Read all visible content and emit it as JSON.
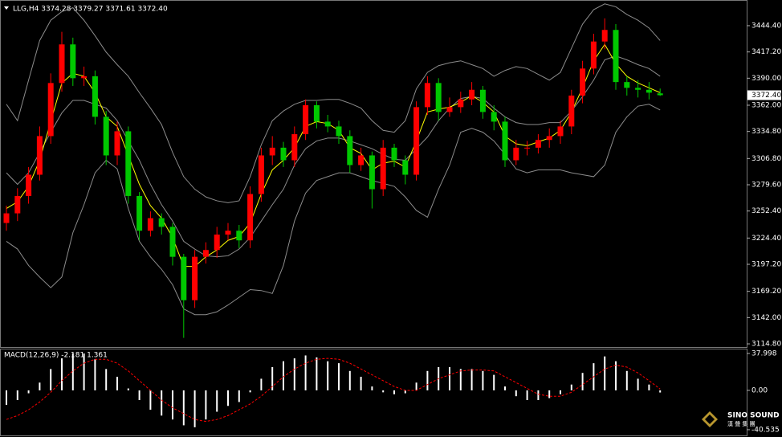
{
  "chart_data": [
    {
      "type": "candlestick",
      "title": "LLG,H4 3374.28 3379.27 3371.61 3372.40",
      "open": [
        3240,
        3250,
        3268,
        3290,
        3330,
        3385,
        3425,
        3390,
        3392,
        3350,
        3310,
        3335,
        3268,
        3232,
        3245,
        3236,
        3205,
        3160,
        3205,
        3212,
        3228,
        3232,
        3222,
        3270,
        3310,
        3318,
        3305,
        3332,
        3362,
        3345,
        3340,
        3330,
        3300,
        3310,
        3275,
        3318,
        3305,
        3290,
        3360,
        3385,
        3355,
        3360,
        3368,
        3378,
        3355,
        3345,
        3305,
        3318,
        3318,
        3326,
        3330,
        3340,
        3372,
        3400,
        3428,
        3440,
        3386,
        3380,
        3378,
        3374.28
      ],
      "high": [
        3258,
        3276,
        3298,
        3340,
        3395,
        3438,
        3432,
        3402,
        3398,
        3356,
        3345,
        3340,
        3272,
        3252,
        3250,
        3240,
        3208,
        3212,
        3220,
        3236,
        3240,
        3238,
        3278,
        3318,
        3330,
        3324,
        3340,
        3368,
        3366,
        3352,
        3346,
        3336,
        3318,
        3314,
        3326,
        3322,
        3310,
        3366,
        3392,
        3390,
        3370,
        3376,
        3386,
        3382,
        3362,
        3350,
        3326,
        3325,
        3332,
        3338,
        3346,
        3378,
        3408,
        3436,
        3452,
        3446,
        3392,
        3388,
        3386,
        3379.27
      ],
      "low": [
        3232,
        3242,
        3260,
        3284,
        3322,
        3376,
        3382,
        3382,
        3342,
        3300,
        3300,
        3260,
        3222,
        3226,
        3228,
        3196,
        3121,
        3152,
        3198,
        3204,
        3222,
        3214,
        3214,
        3262,
        3300,
        3298,
        3298,
        3326,
        3338,
        3334,
        3322,
        3292,
        3294,
        3255,
        3268,
        3298,
        3280,
        3284,
        3352,
        3346,
        3350,
        3354,
        3362,
        3348,
        3336,
        3298,
        3300,
        3310,
        3312,
        3318,
        3322,
        3332,
        3364,
        3394,
        3420,
        3378,
        3372,
        3370,
        3368,
        3371.61
      ],
      "close": [
        3250,
        3268,
        3290,
        3330,
        3385,
        3425,
        3390,
        3392,
        3350,
        3310,
        3335,
        3268,
        3232,
        3245,
        3236,
        3205,
        3160,
        3205,
        3212,
        3228,
        3232,
        3222,
        3270,
        3310,
        3318,
        3305,
        3332,
        3362,
        3345,
        3340,
        3330,
        3300,
        3310,
        3275,
        3318,
        3305,
        3290,
        3360,
        3385,
        3355,
        3360,
        3368,
        3378,
        3355,
        3345,
        3305,
        3318,
        3318,
        3326,
        3330,
        3340,
        3372,
        3400,
        3428,
        3440,
        3386,
        3380,
        3378,
        3375,
        3372.4
      ],
      "up_color": "#ff0000",
      "down_color": "#00c800",
      "bands": [
        {
          "color": "#8c8c8c",
          "values": [
            3363,
            3346,
            3388,
            3429,
            3450,
            3459,
            3463,
            3450,
            3434,
            3417,
            3404,
            3392,
            3375,
            3359,
            3342,
            3313,
            3288,
            3275,
            3267,
            3263,
            3261,
            3263,
            3288,
            3321,
            3346,
            3356,
            3363,
            3367,
            3367,
            3368,
            3368,
            3364,
            3359,
            3346,
            3336,
            3334,
            3346,
            3379,
            3396,
            3403,
            3406,
            3408,
            3404,
            3400,
            3392,
            3398,
            3402,
            3400,
            3394,
            3388,
            3396,
            3421,
            3446,
            3461,
            3467,
            3464,
            3456,
            3450,
            3442,
            3429
          ]
        },
        {
          "color": "#8c8c8c",
          "values": [
            3292,
            3280,
            3292,
            3313,
            3334,
            3354,
            3367,
            3367,
            3363,
            3359,
            3346,
            3325,
            3305,
            3280,
            3259,
            3242,
            3221,
            3213,
            3206,
            3205,
            3206,
            3213,
            3225,
            3242,
            3259,
            3275,
            3300,
            3317,
            3325,
            3328,
            3328,
            3325,
            3321,
            3317,
            3311,
            3306,
            3305,
            3317,
            3329,
            3346,
            3359,
            3369,
            3371,
            3369,
            3359,
            3350,
            3344,
            3342,
            3342,
            3344,
            3344,
            3356,
            3371,
            3388,
            3409,
            3413,
            3409,
            3404,
            3400,
            3392
          ]
        },
        {
          "color": "#8c8c8c",
          "values": [
            3221,
            3213,
            3196,
            3184,
            3173,
            3184,
            3230,
            3259,
            3292,
            3305,
            3296,
            3255,
            3221,
            3205,
            3192,
            3176,
            3151,
            3145,
            3145,
            3148,
            3155,
            3163,
            3171,
            3170,
            3167,
            3196,
            3242,
            3271,
            3284,
            3288,
            3292,
            3292,
            3288,
            3284,
            3281,
            3278,
            3267,
            3253,
            3246,
            3275,
            3300,
            3334,
            3338,
            3334,
            3325,
            3311,
            3296,
            3292,
            3295,
            3295,
            3295,
            3292,
            3290,
            3288,
            3300,
            3334,
            3350,
            3361,
            3363,
            3357
          ]
        },
        {
          "color": "#ffff00",
          "values": [
            3255,
            3262,
            3278,
            3305,
            3345,
            3385,
            3395,
            3392,
            3375,
            3350,
            3340,
            3310,
            3280,
            3258,
            3245,
            3225,
            3195,
            3195,
            3205,
            3212,
            3222,
            3226,
            3240,
            3270,
            3295,
            3305,
            3318,
            3340,
            3345,
            3343,
            3336,
            3318,
            3312,
            3295,
            3302,
            3304,
            3298,
            3325,
            3355,
            3358,
            3360,
            3365,
            3372,
            3365,
            3355,
            3330,
            3322,
            3320,
            3324,
            3328,
            3336,
            3355,
            3380,
            3408,
            3425,
            3405,
            3392,
            3385,
            3380,
            3375
          ]
        }
      ],
      "ylim": [
        3111.5,
        3471.0
      ],
      "yticks": [
        {
          "value": 3444.4,
          "label": "3444.40"
        },
        {
          "value": 3417.2,
          "label": "3417.20"
        },
        {
          "value": 3390,
          "label": "3390.00"
        },
        {
          "value": 3362,
          "label": "3362.00"
        },
        {
          "value": 3334.8,
          "label": "3334.80"
        },
        {
          "value": 3306.8,
          "label": "3306.80"
        },
        {
          "value": 3279.6,
          "label": "3279.60"
        },
        {
          "value": 3252.4,
          "label": "3252.40"
        },
        {
          "value": 3224.4,
          "label": "3224.40"
        },
        {
          "value": 3197.2,
          "label": "3197.20"
        },
        {
          "value": 3169.2,
          "label": "3169.20"
        },
        {
          "value": 3142,
          "label": "3142.00"
        },
        {
          "value": 3114.8,
          "label": "3114.80"
        }
      ],
      "last_price": {
        "value": 3372.4,
        "label": "3372.40"
      }
    },
    {
      "type": "macd",
      "title": "MACD(12,26,9) -2.181 1.361",
      "color": "#ffffff",
      "values": [
        -15,
        -10,
        -3,
        8,
        22,
        33,
        38,
        38,
        32,
        22,
        14,
        2,
        -10,
        -20,
        -26,
        -30,
        -36,
        -38,
        -30,
        -22,
        -16,
        -12,
        -2,
        12,
        24,
        30,
        33,
        36,
        34,
        30,
        28,
        20,
        14,
        4,
        -2,
        -4,
        -3,
        8,
        20,
        24,
        24,
        22,
        22,
        20,
        16,
        4,
        -6,
        -10,
        -10,
        -8,
        -4,
        6,
        18,
        28,
        35,
        30,
        20,
        12,
        6,
        -2.181
      ],
      "signal": {
        "color": "#ff0000",
        "values": [
          -30,
          -26,
          -20,
          -12,
          -2,
          10,
          20,
          28,
          32,
          32,
          28,
          20,
          10,
          0,
          -10,
          -18,
          -24,
          -30,
          -32,
          -30,
          -26,
          -20,
          -14,
          -6,
          4,
          14,
          22,
          28,
          32,
          33,
          32,
          28,
          22,
          16,
          10,
          4,
          0,
          0,
          6,
          12,
          16,
          20,
          21,
          21,
          20,
          14,
          8,
          2,
          -4,
          -6,
          -6,
          -2,
          6,
          14,
          22,
          26,
          24,
          18,
          10,
          1.361
        ]
      },
      "ylim": [
        -46.4,
        43.0
      ],
      "yticks": [
        37.998,
        {
          "value": 0,
          "label": "0.00"
        },
        -40.535
      ]
    }
  ],
  "watermark": {
    "title": "SINO SOUND",
    "subtitle": "漢 聲 集 團"
  }
}
